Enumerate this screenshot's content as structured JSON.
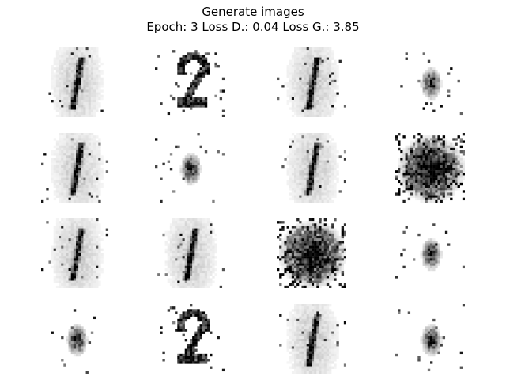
{
  "figure": {
    "title_line1": "Generate images",
    "title_line2": "Epoch: 3 Loss D.: 0.04 Loss G.: 3.85"
  },
  "colors": {
    "background": "#ffffff",
    "ink": "#000000"
  },
  "images": [
    {
      "digit_shape": "stroke-1",
      "noise": "light"
    },
    {
      "digit_shape": "two",
      "noise": "medium"
    },
    {
      "digit_shape": "stroke-1",
      "noise": "light"
    },
    {
      "digit_shape": "blob",
      "noise": "light"
    },
    {
      "digit_shape": "stroke-1",
      "noise": "light"
    },
    {
      "digit_shape": "blob",
      "noise": "light"
    },
    {
      "digit_shape": "stroke-1",
      "noise": "light"
    },
    {
      "digit_shape": "noisy-blob",
      "noise": "heavy"
    },
    {
      "digit_shape": "stroke-1",
      "noise": "light"
    },
    {
      "digit_shape": "stroke-1",
      "noise": "light"
    },
    {
      "digit_shape": "noisy-blob",
      "noise": "heavy"
    },
    {
      "digit_shape": "blob",
      "noise": "light"
    },
    {
      "digit_shape": "blob",
      "noise": "light"
    },
    {
      "digit_shape": "two",
      "noise": "medium"
    },
    {
      "digit_shape": "stroke-1",
      "noise": "light"
    },
    {
      "digit_shape": "blob",
      "noise": "light"
    }
  ]
}
